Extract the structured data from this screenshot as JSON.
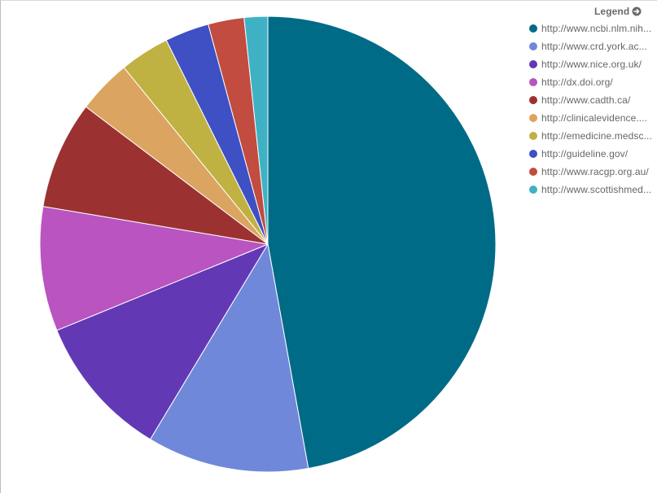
{
  "legend": {
    "title": "Legend",
    "toggle_icon": "circle-arrow-right-icon"
  },
  "colors": {
    "border": "#bdbdbd",
    "slice_stroke": "#ffffff"
  },
  "chart_data": {
    "type": "pie",
    "title": "",
    "start_angle_deg": 0,
    "direction": "clockwise",
    "legend_position": "top-right",
    "slices": [
      {
        "label": "http://www.ncbi.nlm.nih...",
        "value": 48.1,
        "color": "#006b87"
      },
      {
        "label": "http://www.crd.york.ac...",
        "value": 11.7,
        "color": "#6f88d9"
      },
      {
        "label": "http://www.nice.org.uk/",
        "value": 10.4,
        "color": "#6338b5"
      },
      {
        "label": "http://dx.doi.org/",
        "value": 9.0,
        "color": "#b954c0"
      },
      {
        "label": "http://www.cadth.ca/",
        "value": 7.8,
        "color": "#9b3231"
      },
      {
        "label": "http://clinicalevidence....",
        "value": 3.9,
        "color": "#dba460"
      },
      {
        "label": "http://emedicine.medsc...",
        "value": 3.6,
        "color": "#c0b242"
      },
      {
        "label": "http://guideline.gov/",
        "value": 3.2,
        "color": "#3f4fc4"
      },
      {
        "label": "http://www.racgp.org.au/",
        "value": 2.6,
        "color": "#c14c3f"
      },
      {
        "label": "http://www.scottishmed...",
        "value": 1.7,
        "color": "#3fb1c5"
      }
    ]
  }
}
